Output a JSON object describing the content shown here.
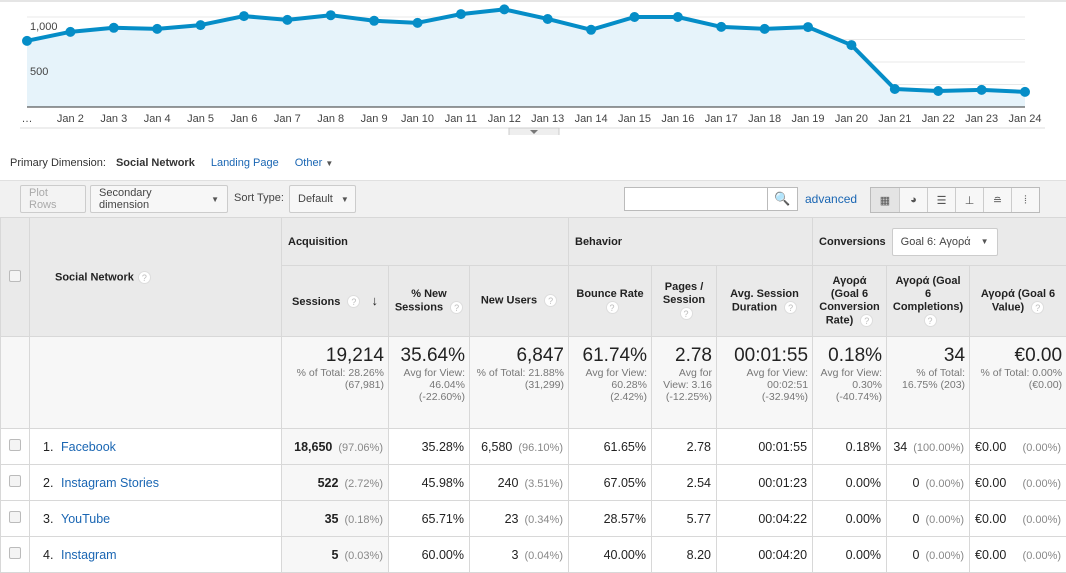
{
  "chart_data": {
    "type": "area",
    "x": [
      "…",
      "Jan 2",
      "Jan 3",
      "Jan 4",
      "Jan 5",
      "Jan 6",
      "Jan 7",
      "Jan 8",
      "Jan 9",
      "Jan 10",
      "Jan 11",
      "Jan 12",
      "Jan 13",
      "Jan 14",
      "Jan 15",
      "Jan 16",
      "Jan 17",
      "Jan 18",
      "Jan 19",
      "Jan 20",
      "Jan 21",
      "Jan 22",
      "Jan 23",
      "Jan 24"
    ],
    "values": [
      735,
      835,
      880,
      868,
      910,
      1010,
      968,
      1020,
      958,
      935,
      1032,
      1085,
      978,
      858,
      1000,
      1000,
      890,
      868,
      888,
      688,
      200,
      178,
      190,
      168
    ],
    "yticks": [
      "1,000",
      "500"
    ],
    "ytick_values": [
      1000,
      500
    ],
    "ylim": [
      0,
      1000
    ],
    "grid": true,
    "color": "#058dc7"
  },
  "primary_dimension": {
    "label": "Primary Dimension:",
    "active": "Social Network",
    "options": [
      "Landing Page",
      "Other"
    ]
  },
  "toolbar": {
    "plot_rows": "Plot Rows",
    "secondary": "Secondary dimension",
    "sort_label": "Sort Type:",
    "sort_value": "Default",
    "search_value": "",
    "advanced": "advanced"
  },
  "table": {
    "dim_header": "Social Network",
    "groups": {
      "acq": "Acquisition",
      "beh": "Behavior",
      "conv": "Conversions",
      "goal": "Goal 6: Αγορά"
    },
    "headers": [
      "Sessions",
      "% New Sessions",
      "New Users",
      "Bounce Rate",
      "Pages / Session",
      "Avg. Session Duration",
      "Αγορά (Goal 6 Conversion Rate)",
      "Αγορά (Goal 6 Completions)",
      "Αγορά (Goal 6 Value)"
    ],
    "totals": [
      {
        "v": "19,214",
        "s": "% of Total: 28.26% (67,981)"
      },
      {
        "v": "35.64%",
        "s": "Avg for View: 46.04% (-22.60%)"
      },
      {
        "v": "6,847",
        "s": "% of Total: 21.88% (31,299)"
      },
      {
        "v": "61.74%",
        "s": "Avg for View: 60.28% (2.42%)"
      },
      {
        "v": "2.78",
        "s": "Avg for View: 3.16 (-12.25%)"
      },
      {
        "v": "00:01:55",
        "s": "Avg for View: 00:02:51 (-32.94%)"
      },
      {
        "v": "0.18%",
        "s": "Avg for View: 0.30% (-40.74%)"
      },
      {
        "v": "34",
        "s": "% of Total: 16.75% (203)"
      },
      {
        "v": "€0.00",
        "s": "% of Total: 0.00% (€0.00)"
      }
    ],
    "rows": [
      {
        "i": "1.",
        "name": "Facebook",
        "sessions": "18,650",
        "sp": "(97.06%)",
        "newp": "35.28%",
        "nu": "6,580",
        "nup": "(96.10%)",
        "br": "61.65%",
        "pps": "2.78",
        "dur": "00:01:55",
        "cr": "0.18%",
        "comp": "34",
        "compp": "(100.00%)",
        "val": "€0.00",
        "valp": "(0.00%)"
      },
      {
        "i": "2.",
        "name": "Instagram Stories",
        "sessions": "522",
        "sp": "(2.72%)",
        "newp": "45.98%",
        "nu": "240",
        "nup": "(3.51%)",
        "br": "67.05%",
        "pps": "2.54",
        "dur": "00:01:23",
        "cr": "0.00%",
        "comp": "0",
        "compp": "(0.00%)",
        "val": "€0.00",
        "valp": "(0.00%)"
      },
      {
        "i": "3.",
        "name": "YouTube",
        "sessions": "35",
        "sp": "(0.18%)",
        "newp": "65.71%",
        "nu": "23",
        "nup": "(0.34%)",
        "br": "28.57%",
        "pps": "5.77",
        "dur": "00:04:22",
        "cr": "0.00%",
        "comp": "0",
        "compp": "(0.00%)",
        "val": "€0.00",
        "valp": "(0.00%)"
      },
      {
        "i": "4.",
        "name": "Instagram",
        "sessions": "5",
        "sp": "(0.03%)",
        "newp": "60.00%",
        "nu": "3",
        "nup": "(0.04%)",
        "br": "40.00%",
        "pps": "8.20",
        "dur": "00:04:20",
        "cr": "0.00%",
        "comp": "0",
        "compp": "(0.00%)",
        "val": "€0.00",
        "valp": "(0.00%)"
      }
    ]
  }
}
